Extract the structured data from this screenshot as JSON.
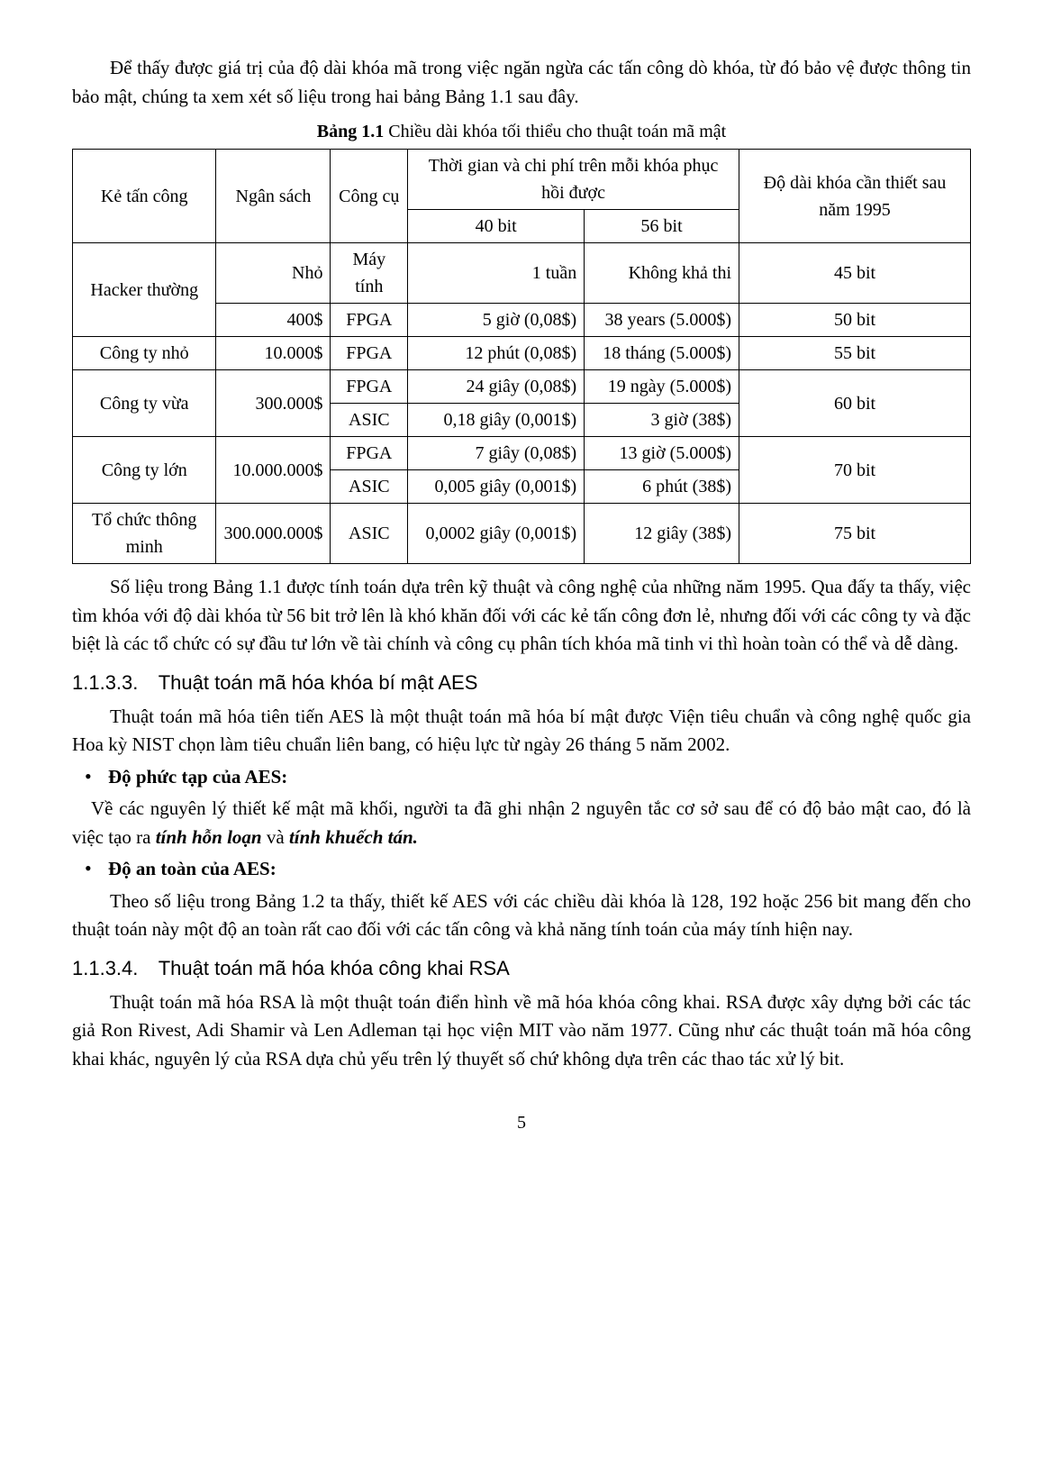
{
  "intro_para": "Để thấy được giá trị của độ dài khóa mã trong việc ngăn ngừa các tấn công dò khóa, từ đó bảo vệ được thông tin bảo mật, chúng ta xem xét số liệu trong hai bảng Bảng 1.1 sau đây.",
  "table_caption_label": "Bảng 1.1",
  "table_caption_text": " Chiều dài khóa tối thiểu cho thuật toán mã mật",
  "table": {
    "headers": {
      "col1": "Kẻ tấn công",
      "col2": "Ngân sách",
      "col3": "Công cụ",
      "col4_group": "Thời gian và chi phí trên mỗi khóa phục hồi được",
      "col4a": "40 bit",
      "col4b": "56 bit",
      "col5": "Độ dài khóa cần thiết sau năm 1995"
    },
    "rows": [
      {
        "attacker": "Hacker thường",
        "attacker_rowspan": 2,
        "budget": "Nhỏ",
        "tool": "Máy tính",
        "t40": "1 tuần",
        "t56": "Không khả thi",
        "keylen": "45 bit",
        "keylen_rowspan": 1
      },
      {
        "budget": "400$",
        "tool": "FPGA",
        "t40": "5 giờ (0,08$)",
        "t56": "38 years (5.000$)",
        "keylen": "50 bit",
        "keylen_rowspan": 1
      },
      {
        "attacker": "Công ty nhỏ",
        "attacker_rowspan": 1,
        "budget": "10.000$",
        "tool": "FPGA",
        "t40": "12 phút (0,08$)",
        "t56": "18 tháng (5.000$)",
        "keylen": "55 bit",
        "keylen_rowspan": 1
      },
      {
        "attacker": "Công ty vừa",
        "attacker_rowspan": 2,
        "budget": "300.000$",
        "budget_rowspan": 2,
        "tool": "FPGA",
        "t40": "24 giây (0,08$)",
        "t56": "19 ngày (5.000$)",
        "keylen": "60 bit",
        "keylen_rowspan": 2
      },
      {
        "tool": "ASIC",
        "t40": "0,18 giây (0,001$)",
        "t56": "3 giờ (38$)"
      },
      {
        "attacker": "Công ty lớn",
        "attacker_rowspan": 2,
        "budget": "10.000.000$",
        "budget_rowspan": 2,
        "tool": "FPGA",
        "t40": "7 giây (0,08$)",
        "t56": "13 giờ (5.000$)",
        "keylen": "70 bit",
        "keylen_rowspan": 2
      },
      {
        "tool": "ASIC",
        "t40": "0,005 giây (0,001$)",
        "t56": "6 phút (38$)"
      },
      {
        "attacker": "Tổ chức thông minh",
        "attacker_rowspan": 1,
        "budget": "300.000.000$",
        "tool": "ASIC",
        "t40": "0,0002 giây (0,001$)",
        "t56": "12 giây (38$)",
        "keylen": "75 bit",
        "keylen_rowspan": 1
      }
    ]
  },
  "after_table_para": "Số liệu trong Bảng 1.1 được tính toán dựa trên kỹ thuật và công nghệ của những năm 1995. Qua đấy ta thấy, việc tìm khóa với độ dài khóa từ 56 bit trở lên là khó khăn đối với các kẻ tấn công đơn lẻ, nhưng đối với các công ty và đặc biệt là các tổ chức có sự đầu tư lớn về tài chính và công cụ phân tích khóa mã tinh vi thì hoàn toàn có thể và dễ dàng.",
  "section_1133": {
    "num": "1.1.3.3.",
    "title": "Thuật toán mã hóa khóa bí mật AES"
  },
  "aes_intro": "Thuật toán mã hóa tiên tiến AES là một thuật toán mã hóa bí mật được Viện tiêu chuẩn và công nghệ quốc gia Hoa kỳ NIST chọn làm tiêu chuẩn liên bang, có hiệu lực từ ngày 26 tháng 5 năm 2002.",
  "bullet_complexity": "Độ phức tạp của AES:",
  "complexity_para_pre": "Về các nguyên lý thiết kế mật mã khối, người ta đã ghi nhận 2 nguyên tắc cơ sở sau để có độ bảo mật cao, đó là việc tạo ra ",
  "complexity_em1": "tính hỗn loạn",
  "complexity_mid": " và ",
  "complexity_em2": "tính khuếch tán.",
  "bullet_safety": "Độ an toàn của AES:",
  "safety_para": "Theo số liệu trong Bảng 1.2 ta thấy, thiết kế AES với các chiều dài khóa là 128, 192 hoặc 256 bit mang đến cho thuật toán này một độ an toàn rất cao đối với các tấn công và khả năng tính toán của máy tính hiện nay.",
  "section_1134": {
    "num": "1.1.3.4.",
    "title": "Thuật toán mã hóa khóa công khai RSA"
  },
  "rsa_para": "Thuật toán mã hóa RSA là một thuật toán điển hình về mã hóa khóa công khai. RSA được xây dựng bởi các tác giả Ron Rivest, Adi Shamir và Len Adleman tại học viện MIT vào năm 1977. Cũng như các thuật toán mã hóa công khai khác, nguyên lý của RSA dựa chủ yếu trên lý thuyết số chứ không dựa trên các thao tác xử lý bit.",
  "page_number": "5"
}
